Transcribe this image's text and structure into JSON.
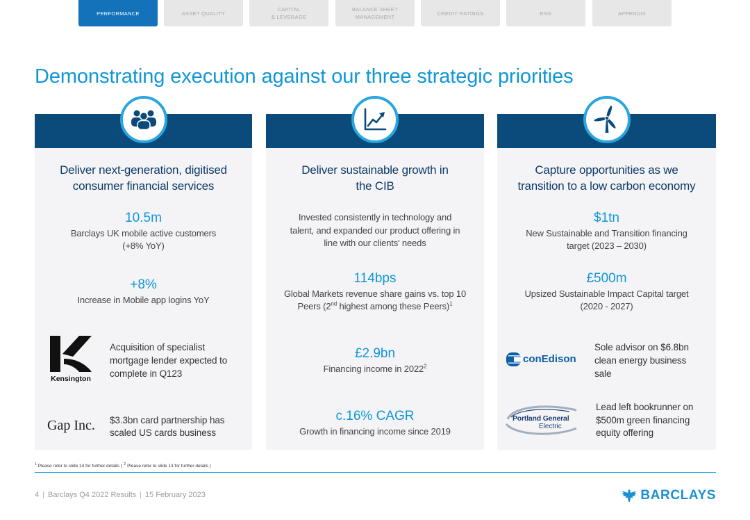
{
  "nav": {
    "tabs": [
      {
        "lines": [
          "PERFORMANCE"
        ],
        "active": true
      },
      {
        "lines": [
          "ASSET QUALITY"
        ],
        "active": false
      },
      {
        "lines": [
          "CAPITAL",
          "& LEVERAGE"
        ],
        "active": false
      },
      {
        "lines": [
          "BALANCE SHEET",
          "MANAGEMENT"
        ],
        "active": false
      },
      {
        "lines": [
          "CREDIT RATINGS"
        ],
        "active": false
      },
      {
        "lines": [
          "ESG"
        ],
        "active": false
      },
      {
        "lines": [
          "APPENDIX"
        ],
        "active": false
      }
    ]
  },
  "title": "Demonstrating execution against our three strategic priorities",
  "columns": [
    {
      "icon": "people-group-icon",
      "heading": [
        "Deliver next-generation, digitised",
        "consumer financial services"
      ],
      "metrics": [
        {
          "value": "10.5m",
          "desc": [
            "Barclays UK mobile active customers",
            "(+8% YoY)"
          ]
        },
        {
          "value": "+8%",
          "desc": [
            "Increase in Mobile app logins YoY"
          ]
        }
      ],
      "highlights": [
        {
          "logo": "Kensington",
          "text": [
            "Acquisition of specialist",
            "mortgage lender expected to",
            "complete in Q123"
          ]
        },
        {
          "logo": "Gap Inc.",
          "text": [
            "$3.3bn card partnership has",
            "scaled US cards business"
          ]
        }
      ]
    },
    {
      "icon": "growth-chart-icon",
      "heading": [
        "Deliver sustainable growth in",
        "the CIB"
      ],
      "intro": [
        "Invested consistently in technology and",
        "talent, and expanded our product offering in",
        "line with our clients' needs"
      ],
      "metrics": [
        {
          "value": "114bps",
          "desc": [
            "Global Markets revenue share gains vs. top 10"
          ],
          "desc_rich": {
            "before": "Peers (2",
            "ordinal": "nd",
            "after": " highest among these Peers)",
            "footnote_ref": "1"
          }
        },
        {
          "value": "£2.9bn",
          "desc_rich": {
            "before": "Financing income in 2022",
            "footnote_ref": "2"
          }
        },
        {
          "value": "c.16% CAGR",
          "desc": [
            "Growth in financing income since 2019"
          ]
        }
      ]
    },
    {
      "icon": "wind-turbine-icon",
      "heading": [
        "Capture opportunities as we",
        "transition to a low carbon economy"
      ],
      "metrics": [
        {
          "value": "$1tn",
          "desc": [
            "New Sustainable and Transition financing",
            "target (2023 – 2030)"
          ]
        },
        {
          "value": "£500m",
          "desc": [
            "Upsized Sustainable Impact Capital target",
            "(2020 - 2027)"
          ]
        }
      ],
      "highlights": [
        {
          "logo": "conEdison",
          "text": [
            "Sole advisor on $6.8bn",
            "clean energy business",
            "sale"
          ]
        },
        {
          "logo_lines": [
            "Portland General",
            "Electric"
          ],
          "text": [
            "Lead left bookrunner on",
            "$500m green financing",
            "equity offering"
          ]
        }
      ]
    }
  ],
  "footnotes": [
    {
      "ref": "1",
      "text": "Please refer to slide 14 for further details |"
    },
    {
      "ref": "2",
      "text": "Please refer to slide 13 for further details |"
    }
  ],
  "footer": {
    "page_number": "4",
    "separator": "|",
    "deck_title": "Barclays Q4 2022 Results",
    "date": "15 February 2023"
  },
  "brand": {
    "name": "BARCLAYS",
    "icon": "eagle-icon"
  },
  "colors": {
    "accent": "#0F96D7",
    "heading": "#0E3A66",
    "band": "#0A4B7C",
    "panel": "#F4F4F7",
    "tab_active": "#1372B9",
    "tab_inactive": "#E7E7E7",
    "tab_text": "#A8A8A8",
    "body_text": "#444444",
    "brand": "#1B8FD3",
    "rule": "#1BA0DE",
    "icon_ring": "#2AA5DF",
    "icon_fill": "#0A4A7A"
  }
}
